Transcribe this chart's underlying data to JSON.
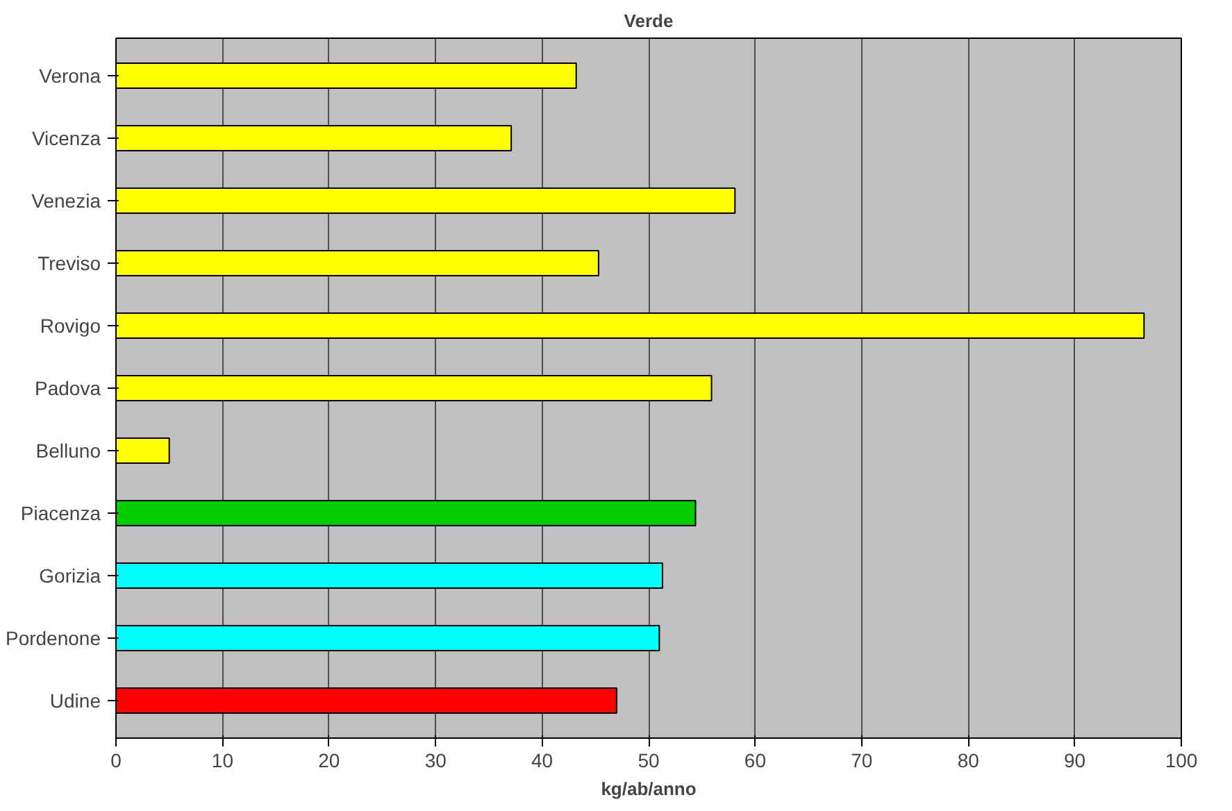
{
  "chart_data": {
    "type": "bar",
    "orientation": "horizontal",
    "title": "Verde",
    "xlabel": "kg/ab/anno",
    "categories": [
      "Verona",
      "Vicenza",
      "Venezia",
      "Treviso",
      "Rovigo",
      "Padova",
      "Belluno",
      "Piacenza",
      "Gorizia",
      "Pordenone",
      "Udine"
    ],
    "values": [
      43.2,
      37.1,
      58.1,
      45.3,
      96.5,
      55.9,
      5.0,
      54.4,
      51.3,
      51.0,
      47.0
    ],
    "colors": [
      "#ffff00",
      "#ffff00",
      "#ffff00",
      "#ffff00",
      "#ffff00",
      "#ffff00",
      "#ffff00",
      "#00cc00",
      "#00ffff",
      "#00ffff",
      "#ff0000"
    ],
    "xlim": [
      0,
      100
    ],
    "xticks": [
      0,
      10,
      20,
      30,
      40,
      50,
      60,
      70,
      80,
      90,
      100
    ],
    "grid": "x"
  }
}
